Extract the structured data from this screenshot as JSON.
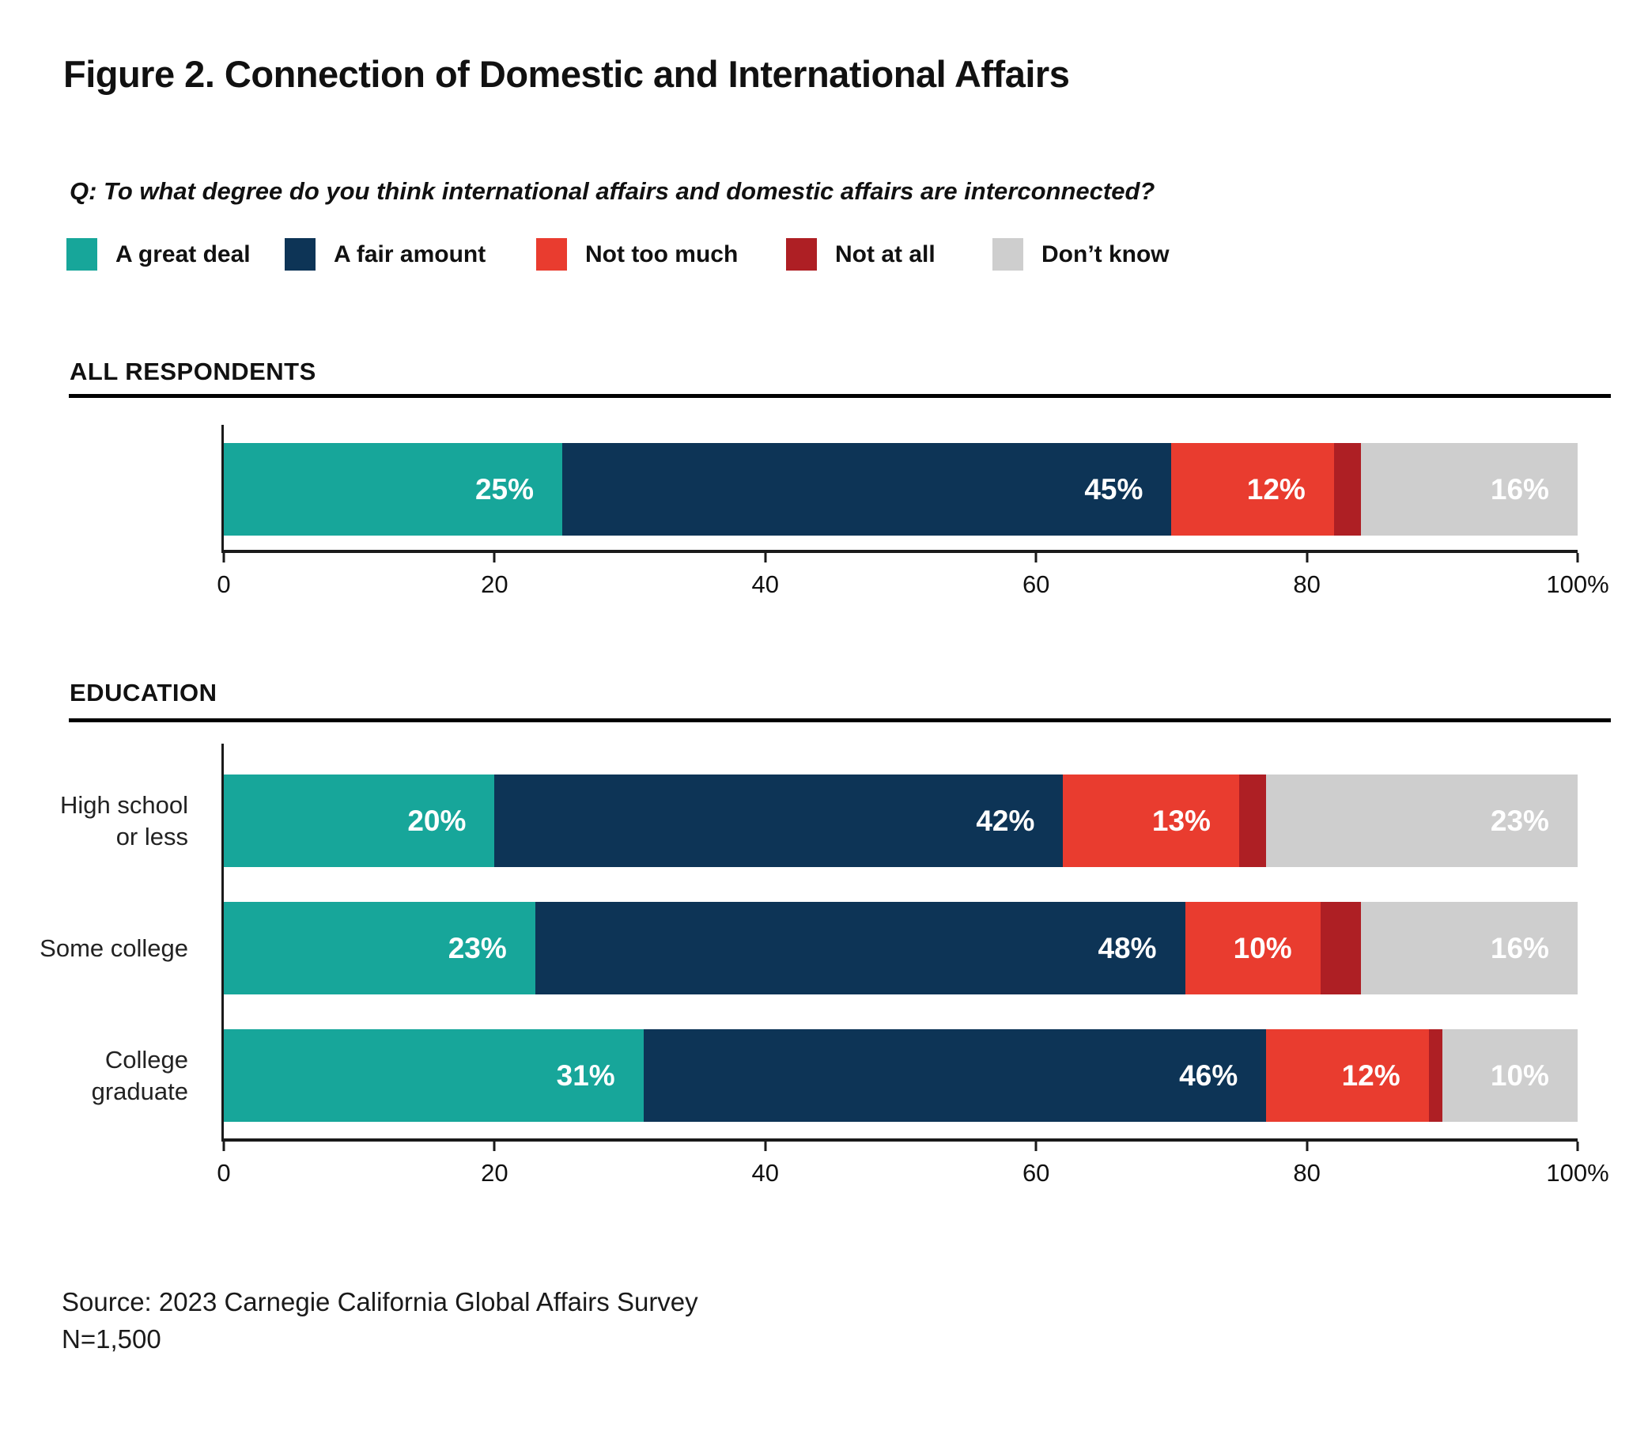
{
  "figure": {
    "title": "Figure 2. Connection of Domestic and International Affairs",
    "question": "Q: To what degree do you think international affairs and domestic affairs are interconnected?",
    "source_line1": "Source: 2023 Carnegie California Global Affairs Survey",
    "source_line2": "N=1,500"
  },
  "legend": [
    {
      "label": "A great deal",
      "color": "#17A69A"
    },
    {
      "label": "A fair amount",
      "color": "#0D3456"
    },
    {
      "label": "Not too much",
      "color": "#E93C2F"
    },
    {
      "label": "Not at all",
      "color": "#AE1F24"
    },
    {
      "label": "Don’t know",
      "color": "#CECECE"
    }
  ],
  "chart_data": {
    "type": "bar",
    "stacked": true,
    "orientation": "horizontal",
    "x_axis": {
      "min": 0,
      "max": 100,
      "ticks": [
        "0",
        "20",
        "40",
        "60",
        "80",
        "100%"
      ]
    },
    "series_names": [
      "A great deal",
      "A fair amount",
      "Not too much",
      "Not at all",
      "Don’t know"
    ],
    "sections": [
      {
        "header": "ALL RESPONDENTS",
        "rows": [
          {
            "category_lines": [],
            "segments": [
              {
                "name": "A great deal",
                "value": 25,
                "label": "25%"
              },
              {
                "name": "A fair amount",
                "value": 45,
                "label": "45%"
              },
              {
                "name": "Not too much",
                "value": 12,
                "label": "12%"
              },
              {
                "name": "Not at all",
                "value": 2,
                "label": ""
              },
              {
                "name": "Don’t know",
                "value": 16,
                "label": "16%"
              }
            ]
          }
        ]
      },
      {
        "header": "EDUCATION",
        "rows": [
          {
            "category_lines": [
              "High school",
              "or less"
            ],
            "segments": [
              {
                "name": "A great deal",
                "value": 20,
                "label": "20%"
              },
              {
                "name": "A fair amount",
                "value": 42,
                "label": "42%"
              },
              {
                "name": "Not too much",
                "value": 13,
                "label": "13%"
              },
              {
                "name": "Not at all",
                "value": 2,
                "label": ""
              },
              {
                "name": "Don’t know",
                "value": 23,
                "label": "23%"
              }
            ]
          },
          {
            "category_lines": [
              "Some college"
            ],
            "segments": [
              {
                "name": "A great deal",
                "value": 23,
                "label": "23%"
              },
              {
                "name": "A fair amount",
                "value": 48,
                "label": "48%"
              },
              {
                "name": "Not too much",
                "value": 10,
                "label": "10%"
              },
              {
                "name": "Not at all",
                "value": 3,
                "label": ""
              },
              {
                "name": "Don’t know",
                "value": 16,
                "label": "16%"
              }
            ]
          },
          {
            "category_lines": [
              "College",
              "graduate"
            ],
            "segments": [
              {
                "name": "A great deal",
                "value": 31,
                "label": "31%"
              },
              {
                "name": "A fair amount",
                "value": 46,
                "label": "46%"
              },
              {
                "name": "Not too much",
                "value": 12,
                "label": "12%"
              },
              {
                "name": "Not at all",
                "value": 1,
                "label": ""
              },
              {
                "name": "Don’t know",
                "value": 10,
                "label": "10%"
              }
            ]
          }
        ]
      }
    ]
  }
}
